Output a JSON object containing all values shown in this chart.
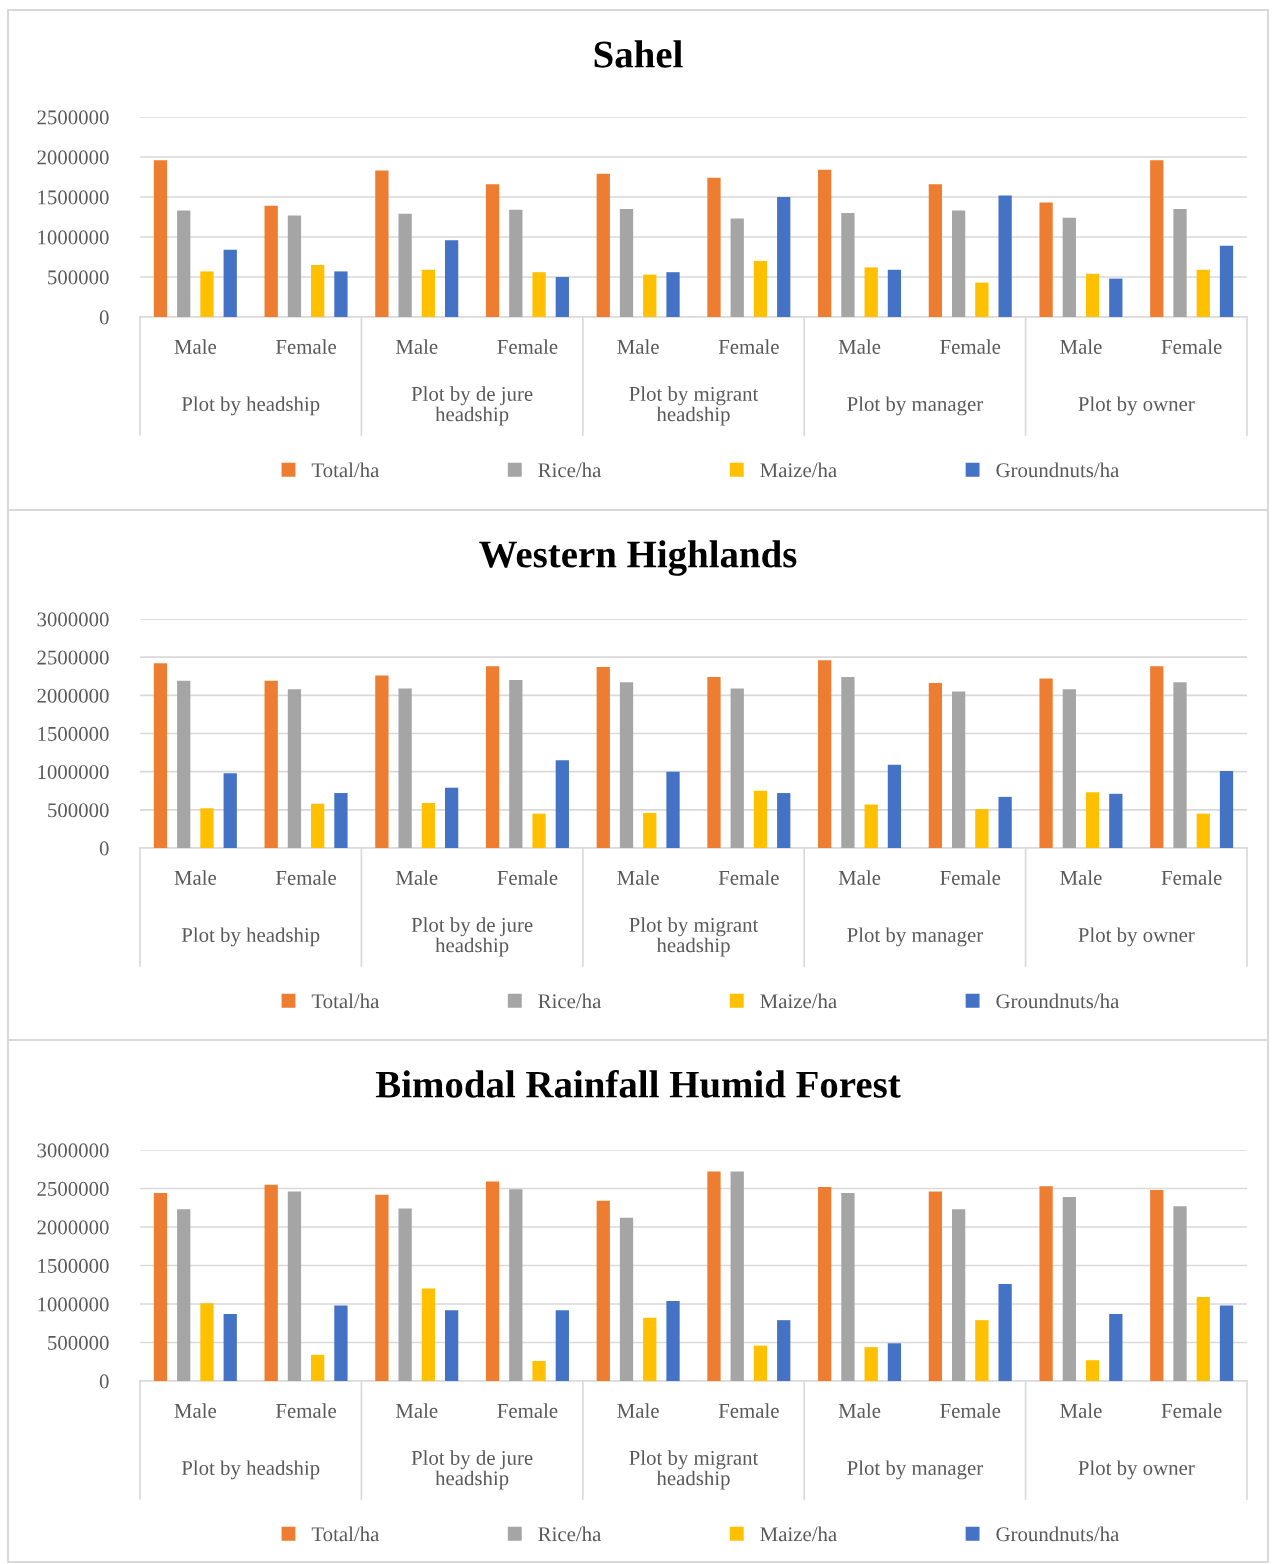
{
  "chart_data": [
    {
      "type": "bar",
      "title": "Sahel",
      "categories": [
        "Male",
        "Female",
        "Male",
        "Female",
        "Male",
        "Female",
        "Male",
        "Female",
        "Male",
        "Female"
      ],
      "annotations": [
        "Plot by headship",
        "Plot by de jure headship",
        "Plot by migrant headship",
        "Plot by manager",
        "Plot by owner"
      ],
      "series": [
        {
          "name": "Total/ha",
          "color": "#ed7d31",
          "values": [
            1960000,
            1390000,
            1830000,
            1660000,
            1790000,
            1740000,
            1840000,
            1660000,
            1430000,
            1960000
          ]
        },
        {
          "name": "Rice/ha",
          "color": "#a5a5a5",
          "values": [
            1330000,
            1270000,
            1290000,
            1340000,
            1350000,
            1230000,
            1300000,
            1330000,
            1240000,
            1350000
          ]
        },
        {
          "name": "Maize/ha",
          "color": "#ffc000",
          "values": [
            570000,
            650000,
            590000,
            560000,
            530000,
            700000,
            620000,
            430000,
            540000,
            590000
          ]
        },
        {
          "name": "Groundnuts/ha",
          "color": "#4472c4",
          "values": [
            840000,
            570000,
            960000,
            500000,
            560000,
            1500000,
            590000,
            1520000,
            480000,
            890000
          ]
        }
      ],
      "ylim": [
        0,
        2500000
      ],
      "yticks": [
        0,
        500000,
        1000000,
        1500000,
        2000000,
        2500000
      ],
      "grid": "y",
      "legend": "bottom"
    },
    {
      "type": "bar",
      "title": "Western Highlands",
      "categories": [
        "Male",
        "Female",
        "Male",
        "Female",
        "Male",
        "Female",
        "Male",
        "Female",
        "Male",
        "Female"
      ],
      "annotations": [
        "Plot by headship",
        "Plot by de jure headship",
        "Plot by migrant headship",
        "Plot by manager",
        "Plot by owner"
      ],
      "series": [
        {
          "name": "Total/ha",
          "color": "#ed7d31",
          "values": [
            2420000,
            2190000,
            2260000,
            2380000,
            2370000,
            2240000,
            2460000,
            2160000,
            2220000,
            2380000
          ]
        },
        {
          "name": "Rice/ha",
          "color": "#a5a5a5",
          "values": [
            2190000,
            2080000,
            2090000,
            2200000,
            2170000,
            2090000,
            2240000,
            2050000,
            2080000,
            2170000
          ]
        },
        {
          "name": "Maize/ha",
          "color": "#ffc000",
          "values": [
            520000,
            580000,
            590000,
            450000,
            460000,
            750000,
            570000,
            510000,
            730000,
            450000
          ]
        },
        {
          "name": "Groundnuts/ha",
          "color": "#4472c4",
          "values": [
            980000,
            720000,
            790000,
            1150000,
            1000000,
            720000,
            1090000,
            670000,
            710000,
            1010000
          ]
        }
      ],
      "ylim": [
        0,
        3000000
      ],
      "yticks": [
        0,
        500000,
        1000000,
        1500000,
        2000000,
        2500000,
        3000000
      ],
      "grid": "y",
      "legend": "bottom"
    },
    {
      "type": "bar",
      "title": "Bimodal Rainfall Humid Forest",
      "categories": [
        "Male",
        "Female",
        "Male",
        "Female",
        "Male",
        "Female",
        "Male",
        "Female",
        "Male",
        "Female"
      ],
      "annotations": [
        "Plot by headship",
        "Plot by de jure headship",
        "Plot by migrant headship",
        "Plot by manager",
        "Plot by owner"
      ],
      "series": [
        {
          "name": "Total/ha",
          "color": "#ed7d31",
          "values": [
            2440000,
            2550000,
            2420000,
            2590000,
            2340000,
            2720000,
            2520000,
            2460000,
            2530000,
            2480000
          ]
        },
        {
          "name": "Rice/ha",
          "color": "#a5a5a5",
          "values": [
            2230000,
            2460000,
            2240000,
            2490000,
            2120000,
            2720000,
            2440000,
            2230000,
            2390000,
            2270000
          ]
        },
        {
          "name": "Maize/ha",
          "color": "#ffc000",
          "values": [
            1010000,
            340000,
            1200000,
            260000,
            820000,
            460000,
            440000,
            790000,
            270000,
            1090000
          ]
        },
        {
          "name": "Groundnuts/ha",
          "color": "#4472c4",
          "values": [
            870000,
            980000,
            920000,
            920000,
            1040000,
            790000,
            490000,
            1260000,
            870000,
            980000
          ]
        }
      ],
      "ylim": [
        0,
        3000000
      ],
      "yticks": [
        0,
        500000,
        1000000,
        1500000,
        2000000,
        2500000,
        3000000
      ],
      "grid": "y",
      "legend": "bottom"
    }
  ]
}
